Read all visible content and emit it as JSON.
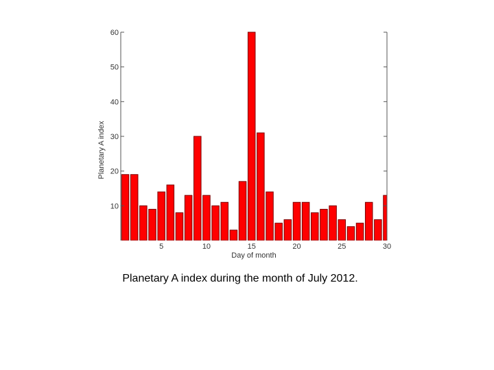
{
  "caption": "Planetary A index during the month of July 2012.",
  "chart_data": {
    "type": "bar",
    "xlabel": "Day of month",
    "ylabel": "Planetary A index",
    "x": [
      1,
      2,
      3,
      4,
      5,
      6,
      7,
      8,
      9,
      10,
      11,
      12,
      13,
      14,
      15,
      16,
      17,
      18,
      19,
      20,
      21,
      22,
      23,
      24,
      25,
      26,
      27,
      28,
      29,
      30
    ],
    "values": [
      19,
      19,
      10,
      9,
      14,
      16,
      8,
      13,
      30,
      13,
      10,
      11,
      3,
      17,
      60,
      31,
      14,
      5,
      6,
      11,
      11,
      8,
      9,
      10,
      6,
      4,
      5,
      11,
      6,
      13
    ],
    "xticks": [
      5,
      10,
      15,
      20,
      25,
      30
    ],
    "yticks": [
      10,
      20,
      30,
      40,
      50,
      60
    ],
    "xlim": [
      0.5,
      30
    ],
    "ylim": [
      0,
      60
    ],
    "bar_color": "#ff0000",
    "edge_color": "#7a0000",
    "grid": false
  }
}
